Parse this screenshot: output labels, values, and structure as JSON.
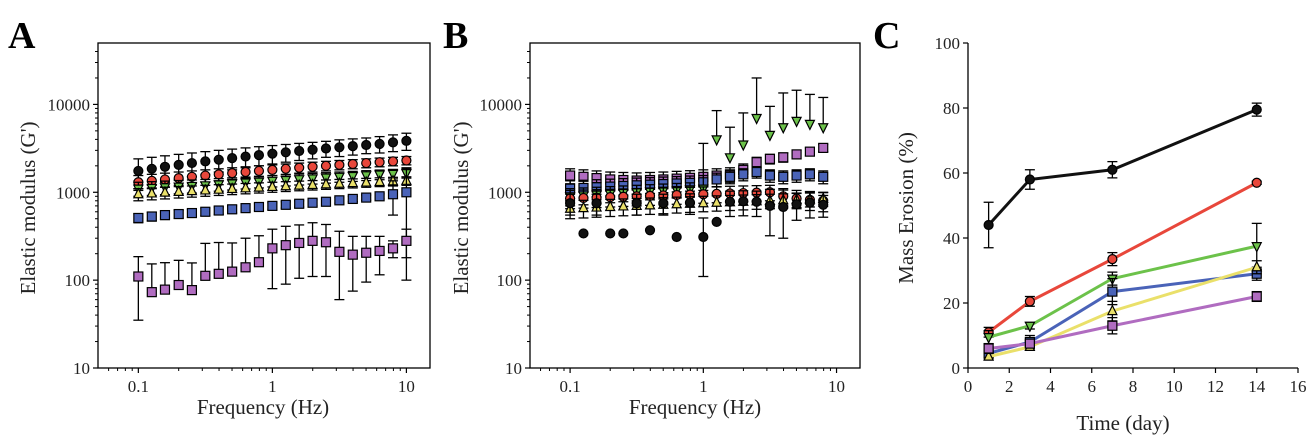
{
  "panels": [
    {
      "letter": "A",
      "xlabel": "Frequency (Hz)",
      "ylabel": "Elastic modulus (G')",
      "x_ticks": [
        "0.1",
        "1",
        "10"
      ],
      "y_ticks": [
        "10",
        "100",
        "1000",
        "10000"
      ]
    },
    {
      "letter": "B",
      "xlabel": "Frequency (Hz)",
      "ylabel": "Elastic modulus (G')",
      "x_ticks": [
        "0.1",
        "1",
        "10"
      ],
      "y_ticks": [
        "10",
        "100",
        "1000",
        "10000"
      ]
    },
    {
      "letter": "C",
      "xlabel": "Time (day)",
      "ylabel": "Mass Erosion (%)",
      "x_ticks": [
        "0",
        "2",
        "4",
        "6",
        "8",
        "10",
        "12",
        "14",
        "16"
      ],
      "y_ticks": [
        "0",
        "20",
        "40",
        "60",
        "80",
        "100"
      ]
    }
  ],
  "colors": {
    "black": "#111111",
    "red": "#e8473b",
    "green": "#6cc24a",
    "blue": "#4a63b8",
    "yellow": "#eae06a",
    "purple": "#b06cc0"
  },
  "chart_data": [
    {
      "type": "scatter",
      "x_scale": "log",
      "y_scale": "log",
      "xlim": [
        0.05,
        15
      ],
      "ylim": [
        10,
        50000
      ],
      "x": [
        0.1,
        0.126,
        0.158,
        0.2,
        0.251,
        0.316,
        0.398,
        0.501,
        0.631,
        0.794,
        1.0,
        1.259,
        1.585,
        1.995,
        2.512,
        3.162,
        3.981,
        5.012,
        6.31,
        7.943,
        10.0
      ],
      "series": [
        {
          "color": "black",
          "marker": "circle",
          "values": [
            1750,
            1850,
            1950,
            2050,
            2150,
            2250,
            2350,
            2450,
            2550,
            2650,
            2750,
            2850,
            2950,
            3050,
            3150,
            3250,
            3350,
            3450,
            3550,
            3700,
            3850
          ],
          "err": [
            650,
            650,
            650,
            650,
            650,
            650,
            650,
            650,
            650,
            650,
            650,
            650,
            650,
            650,
            650,
            700,
            700,
            700,
            750,
            800,
            850
          ]
        },
        {
          "color": "red",
          "marker": "circle",
          "values": [
            1300,
            1350,
            1400,
            1450,
            1500,
            1550,
            1600,
            1650,
            1700,
            1750,
            1800,
            1850,
            1900,
            1950,
            2000,
            2050,
            2100,
            2150,
            2200,
            2250,
            2300
          ],
          "err": [
            250,
            250,
            250,
            250,
            250,
            250,
            250,
            250,
            250,
            250,
            250,
            250,
            250,
            250,
            250,
            250,
            250,
            250,
            250,
            250,
            250
          ]
        },
        {
          "color": "green",
          "marker": "triangle-down",
          "values": [
            1100,
            1120,
            1140,
            1160,
            1180,
            1200,
            1230,
            1260,
            1290,
            1320,
            1350,
            1380,
            1410,
            1440,
            1470,
            1500,
            1530,
            1560,
            1590,
            1620,
            1650
          ],
          "err": [
            200,
            200,
            200,
            200,
            200,
            200,
            200,
            200,
            200,
            200,
            200,
            200,
            200,
            200,
            200,
            200,
            200,
            200,
            200,
            200,
            200
          ]
        },
        {
          "color": "yellow",
          "marker": "triangle-up",
          "values": [
            950,
            970,
            990,
            1010,
            1030,
            1050,
            1070,
            1090,
            1110,
            1130,
            1150,
            1170,
            1190,
            1210,
            1230,
            1250,
            1270,
            1290,
            1310,
            1330,
            1350
          ],
          "err": [
            150,
            150,
            150,
            150,
            150,
            150,
            150,
            150,
            150,
            150,
            150,
            150,
            150,
            150,
            150,
            150,
            150,
            150,
            150,
            150,
            150
          ]
        },
        {
          "color": "blue",
          "marker": "square",
          "values": [
            510,
            530,
            550,
            565,
            580,
            600,
            620,
            640,
            660,
            680,
            700,
            720,
            740,
            760,
            780,
            810,
            840,
            870,
            900,
            950,
            1000
          ],
          "err": [
            60,
            60,
            60,
            60,
            60,
            60,
            60,
            60,
            60,
            60,
            60,
            60,
            60,
            60,
            60,
            60,
            60,
            60,
            60,
            400,
            900
          ]
        },
        {
          "color": "purple",
          "marker": "square",
          "values": [
            110,
            73,
            78,
            88,
            77,
            112,
            118,
            125,
            140,
            160,
            230,
            250,
            265,
            280,
            270,
            210,
            195,
            205,
            215,
            230,
            280
          ],
          "err": [
            75,
            80,
            80,
            80,
            80,
            150,
            150,
            140,
            160,
            160,
            150,
            160,
            160,
            170,
            160,
            150,
            120,
            110,
            100,
            50,
            100
          ]
        }
      ]
    },
    {
      "type": "scatter",
      "x_scale": "log",
      "y_scale": "log",
      "xlim": [
        0.05,
        15
      ],
      "ylim": [
        10,
        50000
      ],
      "x": [
        0.1,
        0.126,
        0.158,
        0.2,
        0.251,
        0.316,
        0.398,
        0.501,
        0.631,
        0.794,
        1.0,
        1.259,
        1.585,
        1.995,
        2.512,
        3.162,
        3.981,
        5.012,
        6.31,
        7.943
      ],
      "series": [
        {
          "color": "purple",
          "marker": "square",
          "values": [
            1550,
            1500,
            1450,
            1400,
            1380,
            1360,
            1380,
            1400,
            1430,
            1460,
            1500,
            1550,
            1600,
            1800,
            2200,
            2400,
            2500,
            2700,
            2900,
            3200
          ],
          "err": [
            300,
            300,
            300,
            300,
            300,
            300,
            300,
            300,
            300,
            300,
            300,
            300,
            300,
            300,
            300,
            300,
            300,
            300,
            300,
            300
          ]
        },
        {
          "color": "blue",
          "marker": "square",
          "values": [
            1100,
            1120,
            1140,
            1160,
            1180,
            1200,
            1220,
            1240,
            1260,
            1280,
            1300,
            1400,
            1500,
            1600,
            1700,
            1550,
            1500,
            1550,
            1600,
            1500
          ],
          "err": [
            250,
            250,
            250,
            250,
            250,
            250,
            250,
            250,
            250,
            250,
            250,
            250,
            250,
            250,
            250,
            250,
            250,
            250,
            250,
            250
          ]
        },
        {
          "color": "green",
          "marker": "triangle-down",
          "values": [
            900,
            920,
            940,
            960,
            980,
            1000,
            1020,
            1040,
            1060,
            1080,
            1100,
            4000,
            2500,
            3500,
            7000,
            4500,
            5500,
            6500,
            6000,
            5500
          ],
          "err": [
            200,
            200,
            200,
            200,
            200,
            200,
            200,
            200,
            200,
            200,
            2500,
            4500,
            3000,
            4500,
            13000,
            5000,
            8000,
            8000,
            7000,
            6500
          ]
        },
        {
          "color": "red",
          "marker": "circle",
          "values": [
            850,
            860,
            870,
            880,
            890,
            900,
            910,
            920,
            930,
            940,
            950,
            960,
            970,
            980,
            990,
            1000,
            900,
            850,
            820,
            800
          ],
          "err": [
            200,
            200,
            200,
            200,
            200,
            200,
            200,
            200,
            200,
            200,
            200,
            200,
            200,
            200,
            200,
            200,
            200,
            200,
            200,
            200
          ]
        },
        {
          "color": "yellow",
          "marker": "triangle-up",
          "values": [
            650,
            660,
            670,
            680,
            690,
            700,
            710,
            720,
            730,
            740,
            750,
            760,
            770,
            780,
            790,
            800,
            810,
            820,
            830,
            840
          ],
          "err": [
            150,
            150,
            150,
            150,
            150,
            150,
            150,
            150,
            150,
            150,
            150,
            150,
            150,
            150,
            150,
            150,
            150,
            150,
            150,
            150
          ]
        },
        {
          "color": "black",
          "marker": "circle",
          "values": [
            750,
            340,
            750,
            340,
            340,
            750,
            370,
            750,
            310,
            760,
            310,
            460,
            780,
            790,
            780,
            700,
            680,
            730,
            760,
            720
          ],
          "err": [
            200,
            0,
            200,
            0,
            0,
            200,
            0,
            200,
            0,
            200,
            200,
            0,
            250,
            250,
            250,
            380,
            380,
            250,
            250,
            200
          ]
        }
      ]
    },
    {
      "type": "line",
      "xlim": [
        0,
        16
      ],
      "ylim": [
        0,
        100
      ],
      "x": [
        1,
        3,
        7,
        14
      ],
      "series": [
        {
          "color": "black",
          "marker": "circle",
          "values": [
            44,
            58,
            61,
            79.5
          ],
          "err": [
            7,
            3,
            2.5,
            2
          ]
        },
        {
          "color": "red",
          "marker": "circle",
          "values": [
            11,
            20.5,
            33.5,
            57
          ],
          "err": [
            1.5,
            1.5,
            2,
            0.5
          ]
        },
        {
          "color": "green",
          "marker": "triangle-down",
          "values": [
            9.5,
            13,
            27.5,
            37.5
          ],
          "err": [
            2,
            1,
            2,
            7
          ]
        },
        {
          "color": "blue",
          "marker": "square",
          "values": [
            4.5,
            8,
            23.5,
            29
          ],
          "err": [
            1.5,
            2,
            4,
            2
          ]
        },
        {
          "color": "yellow",
          "marker": "triangle-up",
          "values": [
            3.5,
            6.5,
            17.5,
            31
          ],
          "err": [
            1,
            1,
            3,
            2
          ]
        },
        {
          "color": "purple",
          "marker": "square",
          "values": [
            6,
            7.5,
            13,
            22
          ],
          "err": [
            1.5,
            1,
            2.5,
            1.5
          ]
        }
      ]
    }
  ]
}
